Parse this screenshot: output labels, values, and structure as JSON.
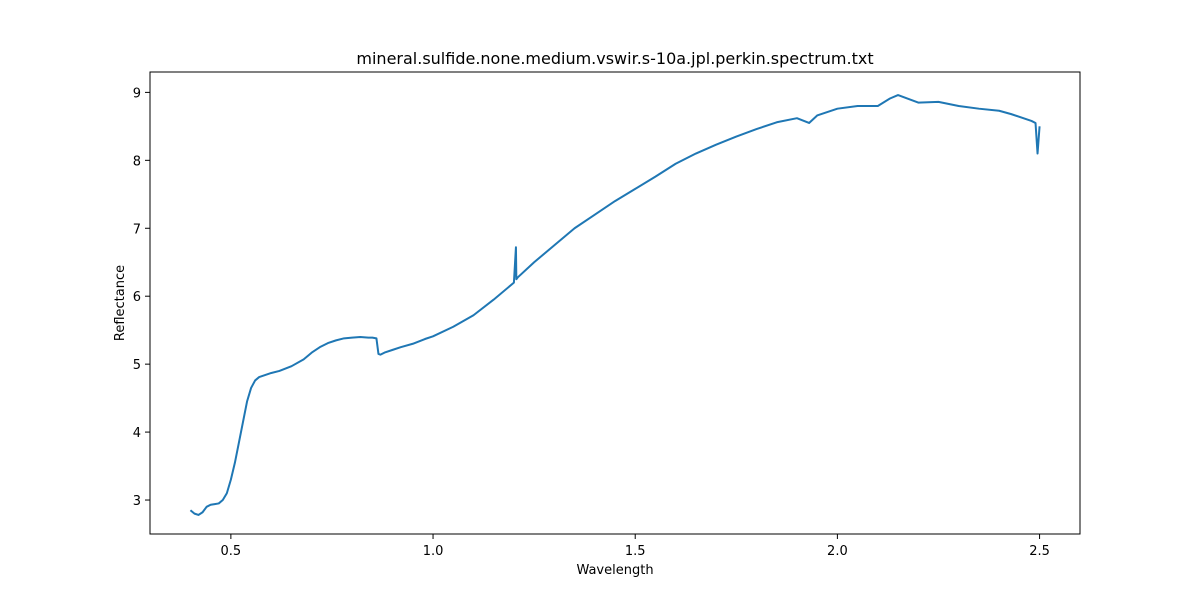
{
  "chart_data": {
    "type": "line",
    "title": "mineral.sulfide.none.medium.vswir.s-10a.jpl.perkin.spectrum.txt",
    "xlabel": "Wavelength",
    "ylabel": "Reflectance",
    "xlim": [
      0.3,
      2.6
    ],
    "ylim": [
      2.5,
      9.3
    ],
    "xticks": [
      "0.5",
      "1.0",
      "1.5",
      "2.0",
      "2.5"
    ],
    "yticks": [
      "3",
      "4",
      "5",
      "6",
      "7",
      "8",
      "9"
    ],
    "grid": false,
    "line_color": "#1f77b4",
    "series": [
      {
        "x": [
          0.4,
          0.41,
          0.42,
          0.43,
          0.44,
          0.45,
          0.46,
          0.47,
          0.48,
          0.49,
          0.5,
          0.51,
          0.52,
          0.53,
          0.54,
          0.55,
          0.56,
          0.57,
          0.58,
          0.59,
          0.6,
          0.62,
          0.65,
          0.68,
          0.7,
          0.72,
          0.74,
          0.76,
          0.78,
          0.8,
          0.82,
          0.84,
          0.85,
          0.86,
          0.865,
          0.87,
          0.88,
          0.9,
          0.92,
          0.95,
          0.98,
          1.0,
          1.05,
          1.1,
          1.15,
          1.2,
          1.205,
          1.206,
          1.21,
          1.25,
          1.3,
          1.35,
          1.4,
          1.45,
          1.5,
          1.55,
          1.6,
          1.65,
          1.7,
          1.75,
          1.8,
          1.85,
          1.9,
          1.93,
          1.95,
          2.0,
          2.05,
          2.1,
          2.13,
          2.15,
          2.2,
          2.25,
          2.3,
          2.35,
          2.4,
          2.43,
          2.46,
          2.48,
          2.49,
          2.495,
          2.5
        ],
        "y": [
          2.85,
          2.8,
          2.78,
          2.82,
          2.9,
          2.93,
          2.94,
          2.95,
          3.0,
          3.1,
          3.3,
          3.55,
          3.85,
          4.15,
          4.45,
          4.65,
          4.76,
          4.81,
          4.83,
          4.85,
          4.87,
          4.9,
          4.97,
          5.07,
          5.17,
          5.25,
          5.31,
          5.35,
          5.38,
          5.39,
          5.4,
          5.39,
          5.39,
          5.38,
          5.15,
          5.14,
          5.17,
          5.21,
          5.25,
          5.3,
          5.37,
          5.41,
          5.55,
          5.72,
          5.95,
          6.2,
          6.72,
          6.25,
          6.28,
          6.5,
          6.75,
          7.0,
          7.2,
          7.4,
          7.58,
          7.76,
          7.95,
          8.1,
          8.23,
          8.35,
          8.46,
          8.56,
          8.62,
          8.55,
          8.66,
          8.76,
          8.8,
          8.8,
          8.91,
          8.96,
          8.85,
          8.86,
          8.8,
          8.76,
          8.73,
          8.68,
          8.62,
          8.58,
          8.55,
          8.1,
          8.5
        ]
      }
    ]
  }
}
